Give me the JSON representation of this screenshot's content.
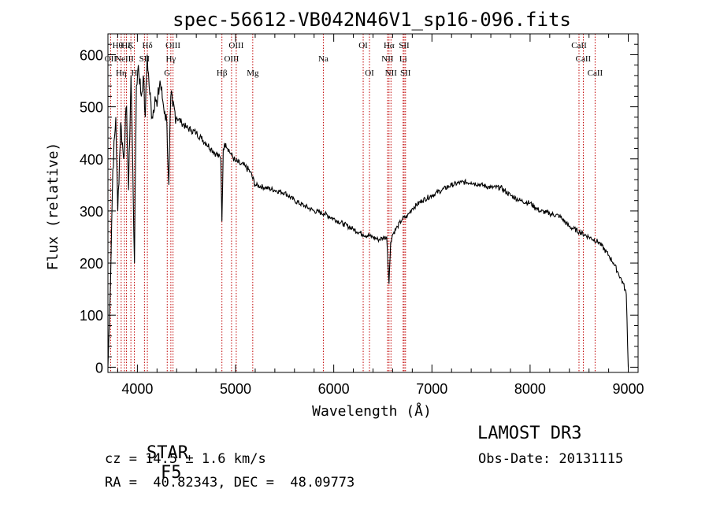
{
  "chart_data": {
    "type": "line",
    "title": "spec-56612-VB042N46V1_sp16-096.fits",
    "xlabel": "Wavelength (Å)",
    "ylabel": "Flux (relative)",
    "xlim": [
      3700,
      9100
    ],
    "ylim": [
      -10,
      640
    ],
    "xticks": [
      4000,
      5000,
      6000,
      7000,
      8000,
      9000
    ],
    "yticks": [
      0,
      100,
      200,
      300,
      400,
      500,
      600
    ],
    "grid": false,
    "series": [
      {
        "name": "spectrum",
        "x": [
          3700,
          3720,
          3750,
          3780,
          3800,
          3830,
          3860,
          3890,
          3910,
          3935,
          3950,
          3970,
          3990,
          4010,
          4040,
          4060,
          4080,
          4100,
          4120,
          4150,
          4180,
          4200,
          4230,
          4260,
          4280,
          4300,
          4320,
          4340,
          4360,
          4400,
          4450,
          4500,
          4550,
          4600,
          4650,
          4700,
          4750,
          4800,
          4850,
          4861,
          4875,
          4900,
          4950,
          5000,
          5050,
          5100,
          5150,
          5200,
          5300,
          5400,
          5500,
          5600,
          5700,
          5800,
          5900,
          6000,
          6100,
          6200,
          6300,
          6400,
          6450,
          6500,
          6540,
          6563,
          6580,
          6600,
          6650,
          6700,
          6750,
          6800,
          6900,
          7000,
          7100,
          7200,
          7300,
          7400,
          7500,
          7600,
          7700,
          7800,
          7900,
          8000,
          8100,
          8200,
          8300,
          8400,
          8500,
          8600,
          8700,
          8800,
          8850,
          8900,
          8950,
          8980,
          9000
        ],
        "y": [
          0,
          120,
          380,
          480,
          300,
          470,
          400,
          500,
          340,
          560,
          420,
          200,
          540,
          580,
          520,
          560,
          480,
          600,
          540,
          480,
          520,
          500,
          550,
          510,
          490,
          470,
          350,
          520,
          500,
          480,
          470,
          460,
          455,
          450,
          440,
          430,
          420,
          410,
          400,
          280,
          420,
          430,
          410,
          395,
          390,
          385,
          375,
          350,
          345,
          340,
          335,
          320,
          310,
          300,
          295,
          285,
          275,
          265,
          255,
          250,
          245,
          248,
          250,
          160,
          240,
          255,
          270,
          285,
          290,
          305,
          320,
          330,
          340,
          350,
          355,
          355,
          350,
          345,
          345,
          330,
          320,
          315,
          300,
          295,
          290,
          270,
          260,
          250,
          240,
          215,
          200,
          180,
          160,
          140,
          0
        ]
      }
    ],
    "lines": [
      {
        "wavelength": 3727,
        "label": "OII",
        "row": 1
      },
      {
        "wavelength": 3798,
        "label": "Hθ",
        "row": 0
      },
      {
        "wavelength": 3835,
        "label": "Hη",
        "row": 2
      },
      {
        "wavelength": 3869,
        "label": "NeIII",
        "row": 1
      },
      {
        "wavelength": 3889,
        "label": "Hζ",
        "row": 0
      },
      {
        "wavelength": 3934,
        "label": "K",
        "row": 0
      },
      {
        "wavelength": 3969,
        "label": "H",
        "row": 2
      },
      {
        "wavelength": 4072,
        "label": "SII",
        "row": 1
      },
      {
        "wavelength": 4102,
        "label": "Hδ",
        "row": 0
      },
      {
        "wavelength": 4304,
        "label": "G",
        "row": 2
      },
      {
        "wavelength": 4341,
        "label": "Hγ",
        "row": 1
      },
      {
        "wavelength": 4363,
        "label": "OIII",
        "row": 0
      },
      {
        "wavelength": 4861,
        "label": "Hβ",
        "row": 2
      },
      {
        "wavelength": 4959,
        "label": "OIII",
        "row": 1
      },
      {
        "wavelength": 5007,
        "label": "OIII",
        "row": 0
      },
      {
        "wavelength": 5175,
        "label": "Mg",
        "row": 2
      },
      {
        "wavelength": 5894,
        "label": "Na",
        "row": 1
      },
      {
        "wavelength": 6300,
        "label": "OI",
        "row": 0
      },
      {
        "wavelength": 6364,
        "label": "OI",
        "row": 2
      },
      {
        "wavelength": 6548,
        "label": "NII",
        "row": 1
      },
      {
        "wavelength": 6563,
        "label": "Hα",
        "row": 0
      },
      {
        "wavelength": 6583,
        "label": "NII",
        "row": 2
      },
      {
        "wavelength": 6707,
        "label": "Li",
        "row": 1
      },
      {
        "wavelength": 6717,
        "label": "SII",
        "row": 0
      },
      {
        "wavelength": 6731,
        "label": "SII",
        "row": 2
      },
      {
        "wavelength": 8498,
        "label": "CaII",
        "row": 0
      },
      {
        "wavelength": 8542,
        "label": "CaII",
        "row": 1
      },
      {
        "wavelength": 8662,
        "label": "CaII",
        "row": 2
      }
    ]
  },
  "info": {
    "class": "STAR",
    "subclass": "F5",
    "survey": "LAMOST DR3",
    "cz": "cz = 14.5 ± 1.6 km/s",
    "obs_date": "Obs-Date: 20131115",
    "coords": "RA =  40.82343, DEC =  48.09773"
  },
  "colors": {
    "spectrum": "#000000",
    "line_markers": "#c00000"
  }
}
